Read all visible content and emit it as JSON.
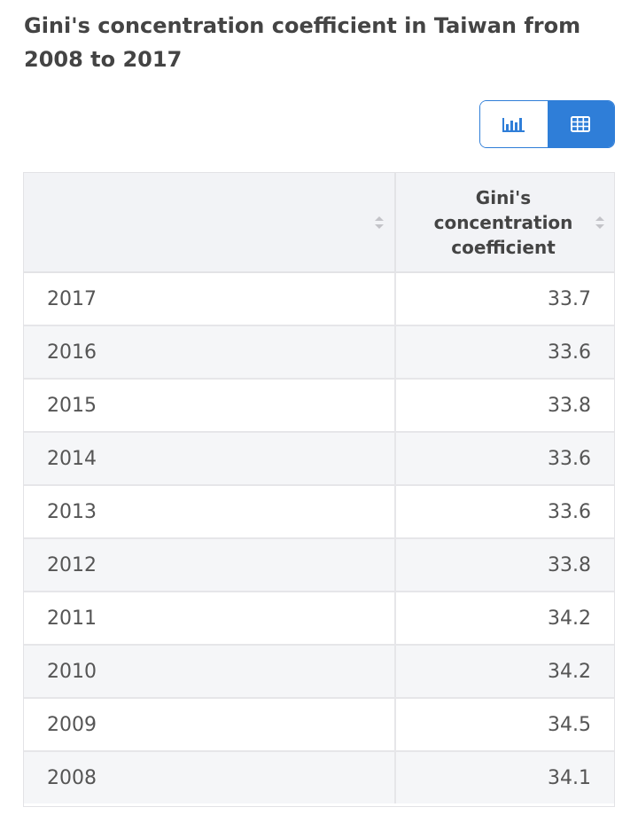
{
  "title": "Gini's concentration coefficient in Taiwan from 2008 to 2017",
  "view_toggle": {
    "chart_icon": "bar-chart-icon",
    "table_icon": "table-grid-icon",
    "active": "table",
    "accent_color": "#2f7ed8"
  },
  "chart_data": {
    "type": "table",
    "title": "Gini's concentration coefficient in Taiwan from 2008 to 2017",
    "columns": [
      "",
      "Gini's concentration coefficient"
    ],
    "categories": [
      "2017",
      "2016",
      "2015",
      "2014",
      "2013",
      "2012",
      "2011",
      "2010",
      "2009",
      "2008"
    ],
    "series": [
      {
        "name": "Gini's concentration coefficient",
        "values": [
          33.7,
          33.6,
          33.8,
          33.6,
          33.6,
          33.8,
          34.2,
          34.2,
          34.5,
          34.1
        ]
      }
    ],
    "rows": [
      {
        "year": "2017",
        "value": "33.7"
      },
      {
        "year": "2016",
        "value": "33.6"
      },
      {
        "year": "2015",
        "value": "33.8"
      },
      {
        "year": "2014",
        "value": "33.6"
      },
      {
        "year": "2013",
        "value": "33.6"
      },
      {
        "year": "2012",
        "value": "33.8"
      },
      {
        "year": "2011",
        "value": "34.2"
      },
      {
        "year": "2010",
        "value": "34.2"
      },
      {
        "year": "2009",
        "value": "34.5"
      },
      {
        "year": "2008",
        "value": "34.1"
      }
    ]
  }
}
